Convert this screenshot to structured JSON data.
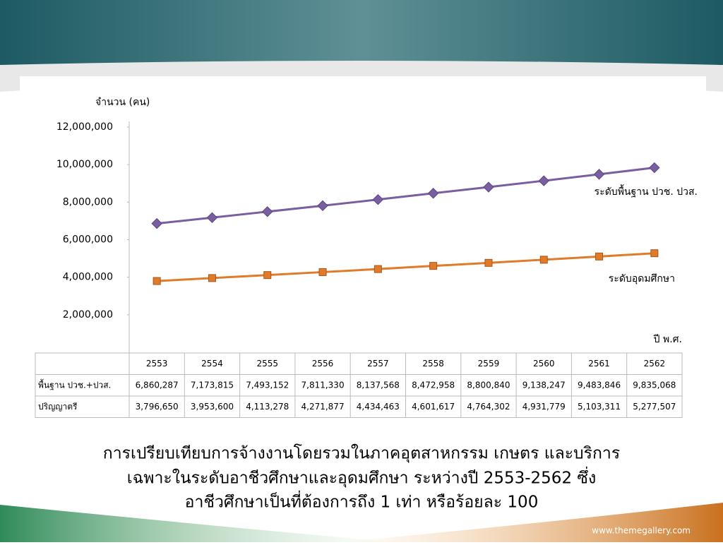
{
  "chart_data": {
    "type": "line",
    "y_label": "จำนวน (คน)",
    "x_label": "ปี พ.ศ.",
    "categories": [
      "2553",
      "2554",
      "2555",
      "2556",
      "2557",
      "2558",
      "2559",
      "2560",
      "2561",
      "2562"
    ],
    "ylim": [
      0,
      12000000
    ],
    "yticks": [
      {
        "value": 2000000,
        "label": "2,000,000"
      },
      {
        "value": 4000000,
        "label": "4,000,000"
      },
      {
        "value": 6000000,
        "label": "6,000,000"
      },
      {
        "value": 8000000,
        "label": "8,000,000"
      },
      {
        "value": 10000000,
        "label": "10,000,000"
      },
      {
        "value": 12000000,
        "label": "12,000,000"
      }
    ],
    "series": [
      {
        "name": "ระดับพื้นฐาน ปวช. ปวส.",
        "table_label": "พื้นฐาน ปวช.+ปวส.",
        "color": "#7a5fa0",
        "marker": "diamond",
        "values": [
          6860287,
          7173815,
          7493152,
          7811330,
          8137568,
          8472958,
          8800840,
          9138247,
          9483846,
          9835068
        ],
        "value_labels": [
          "6,860,287",
          "7,173,815",
          "7,493,152",
          "7,811,330",
          "8,137,568",
          "8,472,958",
          "8,800,840",
          "9,138,247",
          "9,483,846",
          "9,835,068"
        ]
      },
      {
        "name": "ระดับอุดมศึกษา",
        "table_label": "ปริญญาตรี",
        "color": "#e07b2a",
        "marker": "square",
        "values": [
          3796650,
          3953600,
          4113278,
          4271877,
          4434463,
          4601617,
          4764302,
          4931779,
          5103311,
          5277507
        ],
        "value_labels": [
          "3,796,650",
          "3,953,600",
          "4,113,278",
          "4,271,877",
          "4,434,463",
          "4,601,617",
          "4,764,302",
          "4,931,779",
          "5,103,311",
          "5,277,507"
        ]
      }
    ]
  },
  "caption": [
    "การเปรียบเทียบการจ้างงานโดยรวมในภาคอุตสาหกรรม เกษตร และบริการ",
    "เฉพาะในระดับอาชีวศึกษาและอุดมศึกษา ระหว่างปี 2553-2562 ซึ่ง",
    "อาชีวศึกษาเป็นที่ต้องการถึง 1 เท่า หรือร้อยละ 100"
  ],
  "footer": "www.themegallery.com"
}
